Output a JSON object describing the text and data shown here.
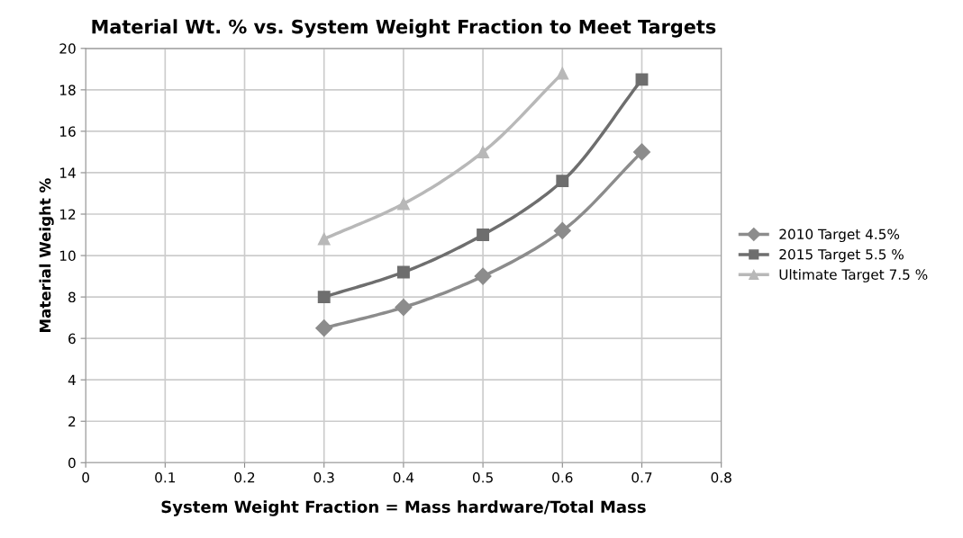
{
  "chart_data": {
    "type": "line",
    "title": "Material Wt. % vs. System Weight Fraction to Meet Targets",
    "xlabel": "System Weight Fraction = Mass hardware/Total Mass",
    "ylabel": "Material Weight %",
    "x": [
      0.3,
      0.4,
      0.5,
      0.6,
      0.7
    ],
    "series": [
      {
        "name": "2010 Target 4.5%",
        "color": "#8c8c8c",
        "marker": "diamond",
        "values": [
          6.5,
          7.5,
          9.0,
          11.2,
          15.0
        ]
      },
      {
        "name": "2015 Target 5.5 %",
        "color": "#6e6e6e",
        "marker": "square",
        "values": [
          8.0,
          9.2,
          11.0,
          13.6,
          18.5
        ]
      },
      {
        "name": "Ultimate Target 7.5 %",
        "color": "#b8b8b8",
        "marker": "triangle",
        "values": [
          10.8,
          12.5,
          15.0,
          18.8,
          null
        ]
      }
    ],
    "xlim": [
      0,
      0.8
    ],
    "xticks": [
      0,
      0.1,
      0.2,
      0.3,
      0.4,
      0.5,
      0.6,
      0.7,
      0.8
    ],
    "ylim": [
      0,
      20
    ],
    "yticks": [
      0,
      2,
      4,
      6,
      8,
      10,
      12,
      14,
      16,
      18,
      20
    ],
    "grid": true,
    "legend": "right"
  }
}
